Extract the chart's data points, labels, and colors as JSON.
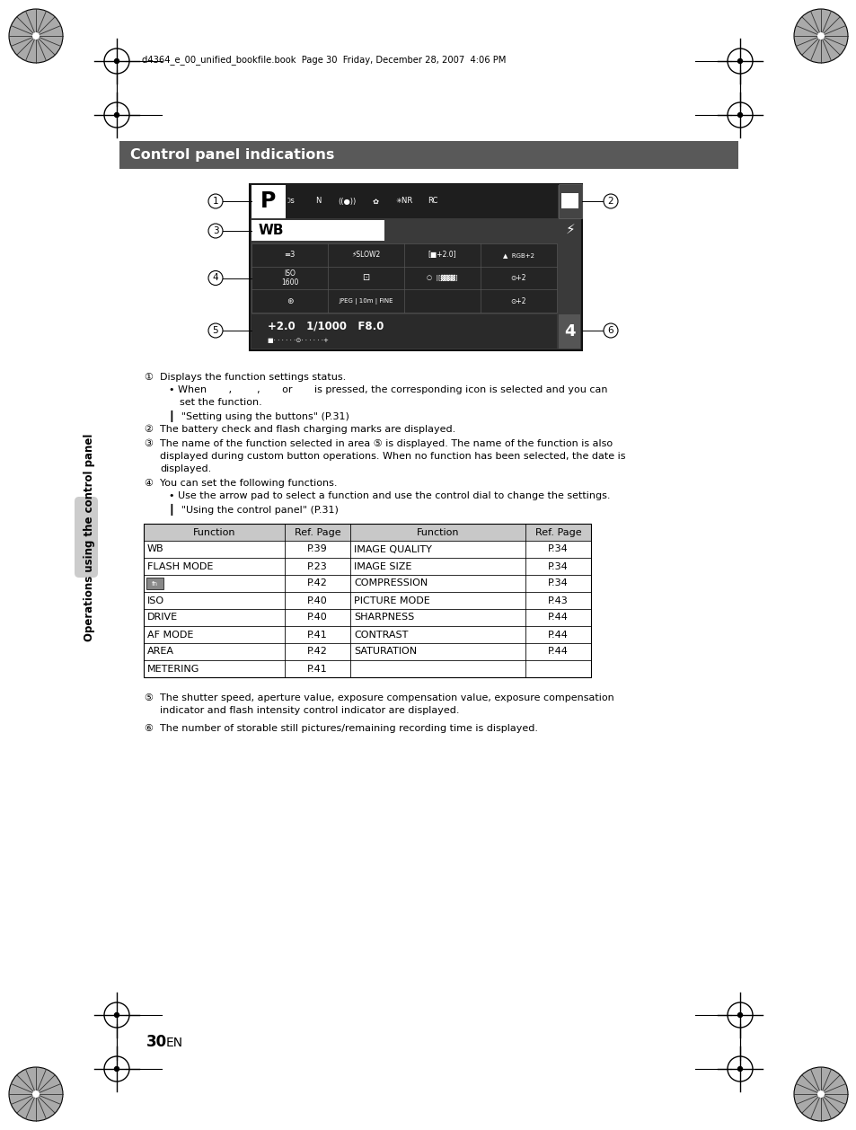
{
  "page_header": "d4364_e_00_unified_bookfile.book  Page 30  Friday, December 28, 2007  4:06 PM",
  "section_title": "Control panel indications",
  "section_title_bg": "#595959",
  "section_title_color": "#ffffff",
  "side_label": "Operations using the control panel",
  "table_headers": [
    "Function",
    "Ref. Page",
    "Function",
    "Ref. Page"
  ],
  "table_rows": [
    [
      "WB",
      "P.39",
      "IMAGE QUALITY",
      "P.34"
    ],
    [
      "FLASH MODE",
      "P.23",
      "IMAGE SIZE",
      "P.34"
    ],
    [
      "[fn]",
      "P.42",
      "COMPRESSION",
      "P.34"
    ],
    [
      "ISO",
      "P.40",
      "PICTURE MODE",
      "P.43"
    ],
    [
      "DRIVE",
      "P.40",
      "SHARPNESS",
      "P.44"
    ],
    [
      "AF MODE",
      "P.41",
      "CONTRAST",
      "P.44"
    ],
    [
      "AREA",
      "P.42",
      "SATURATION",
      "P.44"
    ],
    [
      "METERING",
      "P.41",
      "",
      ""
    ]
  ],
  "table_header_bg": "#c8c8c8",
  "page_number": "30",
  "bg_color": "#ffffff",
  "panel_bg": "#3a3a3a",
  "panel_dark": "#1e1e1e",
  "panel_medium": "#2d2d2d"
}
